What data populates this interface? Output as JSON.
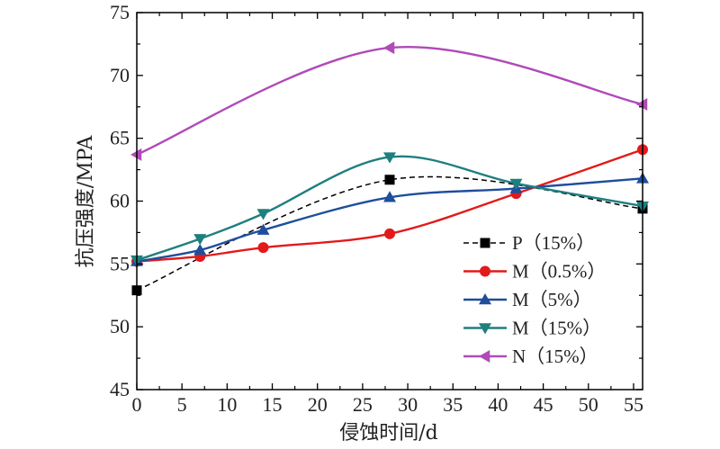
{
  "chart_data": {
    "type": "line",
    "xlabel": "侵蚀时间/d",
    "ylabel": "抗压强度/MPA",
    "xlim": [
      0,
      56
    ],
    "ylim": [
      45,
      75
    ],
    "xticks": [
      0,
      5,
      10,
      15,
      20,
      25,
      30,
      35,
      40,
      45,
      50,
      55
    ],
    "yticks": [
      45,
      50,
      55,
      60,
      65,
      70,
      75
    ],
    "x": [
      0,
      7,
      14,
      28,
      42,
      56
    ],
    "grid": false,
    "legend_position": "lower-right",
    "series": [
      {
        "name": "P（15%）",
        "color": "#000000",
        "marker": "square",
        "line_style": "dashed",
        "x": [
          0,
          28,
          56
        ],
        "values": [
          52.9,
          61.7,
          59.4
        ]
      },
      {
        "name": "M（0.5%）",
        "color": "#e21a1a",
        "marker": "circle",
        "line_style": "solid",
        "x": [
          0,
          7,
          14,
          28,
          42,
          56
        ],
        "values": [
          55.2,
          55.6,
          56.3,
          57.4,
          60.6,
          64.1
        ]
      },
      {
        "name": "M（5%）",
        "color": "#1f4e9c",
        "marker": "triangle-up",
        "line_style": "solid",
        "x": [
          0,
          7,
          14,
          28,
          42,
          56
        ],
        "values": [
          55.2,
          56.1,
          57.7,
          60.3,
          61.0,
          61.8
        ]
      },
      {
        "name": "M（15%）",
        "color": "#1f7f7f",
        "marker": "triangle-down",
        "line_style": "solid",
        "x": [
          0,
          7,
          14,
          28,
          42,
          56
        ],
        "values": [
          55.3,
          57.0,
          59.0,
          63.5,
          61.4,
          59.6
        ]
      },
      {
        "name": "N（15%）",
        "color": "#b04ab8",
        "marker": "triangle-left",
        "line_style": "solid",
        "x": [
          0,
          28,
          56
        ],
        "values": [
          63.7,
          72.2,
          67.7
        ]
      }
    ]
  }
}
